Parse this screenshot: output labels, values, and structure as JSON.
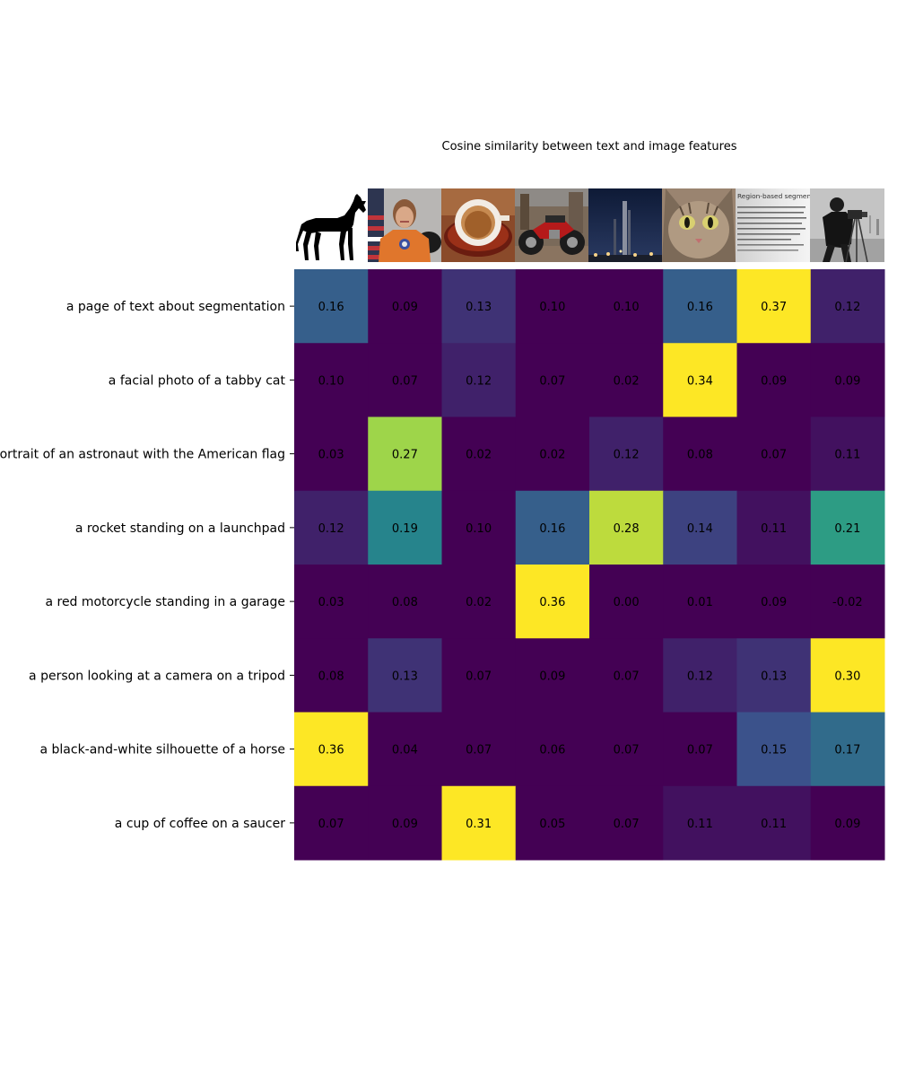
{
  "chart_data": {
    "type": "heatmap",
    "title": "Cosine similarity between text and image features",
    "colormap": "viridis",
    "color_range": [
      0.1,
      0.3
    ],
    "rows": [
      "a page of text about segmentation",
      "a facial photo of a tabby cat",
      "a portrait of an astronaut with the American flag",
      "a rocket standing on a launchpad",
      "a red motorcycle standing in a garage",
      "a person looking at a camera on a tripod",
      "a black-and-white silhouette of a horse",
      "a cup of coffee on a saucer"
    ],
    "columns": [
      "horse-silhouette-image",
      "astronaut-image",
      "coffee-cup-image",
      "motorcycle-image",
      "rocket-image",
      "cat-image",
      "text-page-image",
      "cameraman-image"
    ],
    "values": [
      [
        0.16,
        0.09,
        0.13,
        0.1,
        0.1,
        0.16,
        0.37,
        0.12
      ],
      [
        0.1,
        0.07,
        0.12,
        0.07,
        0.02,
        0.34,
        0.09,
        0.09
      ],
      [
        0.03,
        0.27,
        0.02,
        0.02,
        0.12,
        0.08,
        0.07,
        0.11
      ],
      [
        0.12,
        0.19,
        0.1,
        0.16,
        0.28,
        0.14,
        0.11,
        0.21
      ],
      [
        0.03,
        0.08,
        0.02,
        0.36,
        0.0,
        0.01,
        0.09,
        -0.02
      ],
      [
        0.08,
        0.13,
        0.07,
        0.09,
        0.07,
        0.12,
        0.13,
        0.3
      ],
      [
        0.36,
        0.04,
        0.07,
        0.06,
        0.07,
        0.07,
        0.15,
        0.17
      ],
      [
        0.07,
        0.09,
        0.31,
        0.05,
        0.07,
        0.11,
        0.11,
        0.09
      ]
    ],
    "thumbnail_text": "Region-based segmentation"
  }
}
